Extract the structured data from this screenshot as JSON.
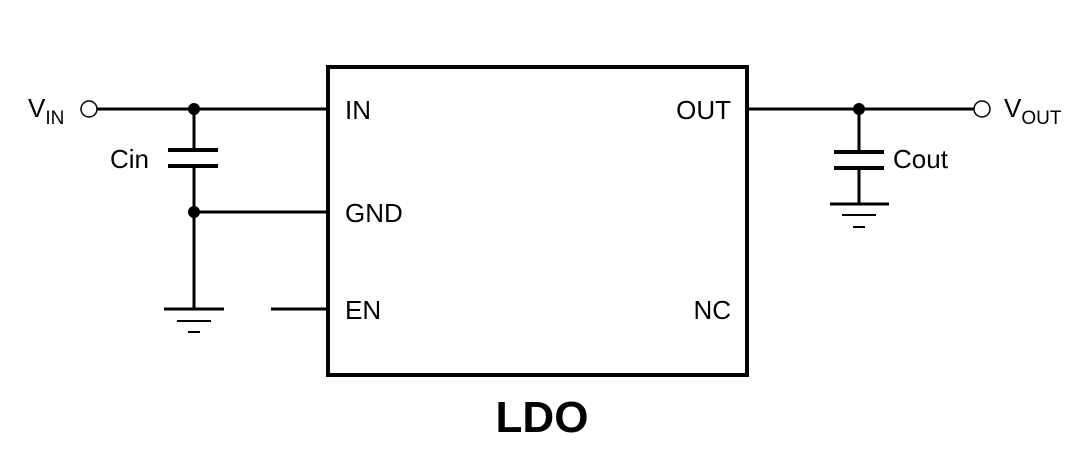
{
  "component": {
    "name": "LDO",
    "pins_left": [
      "IN",
      "GND",
      "EN"
    ],
    "pins_right": [
      "OUT",
      "NC"
    ]
  },
  "input": {
    "label": "V",
    "subscript": "IN"
  },
  "output": {
    "label": "V",
    "subscript": "OUT"
  },
  "capacitors": {
    "input": "Cin",
    "output": "Cout"
  }
}
